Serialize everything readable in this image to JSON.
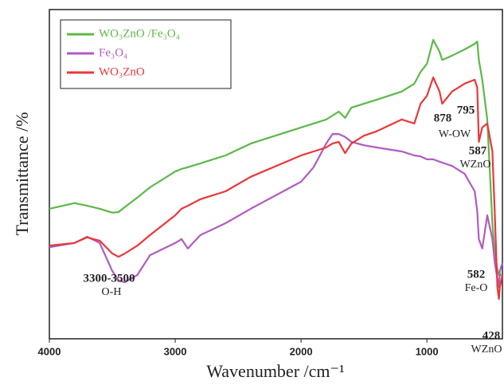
{
  "chart_data": {
    "type": "line",
    "x_label": "Wavenumber /cm⁻¹",
    "y_label": "Transmittance /%",
    "x": [
      4000,
      3800,
      3700,
      3600,
      3500,
      3450,
      3400,
      3300,
      3200,
      3000,
      2950,
      2900,
      2800,
      2600,
      2400,
      2000,
      1900,
      1800,
      1750,
      1700,
      1650,
      1600,
      1500,
      1400,
      1200,
      1100,
      1050,
      1000,
      950,
      900,
      878,
      800,
      700,
      620,
      600,
      587,
      560,
      520,
      480,
      460,
      440,
      428,
      420,
      400
    ],
    "xlim": [
      4000,
      400
    ],
    "xticks": [
      4000,
      3000,
      2000,
      1000
    ],
    "ylim": [
      0,
      100
    ],
    "series": [
      {
        "name": "WO₃ZnO /Fe₃O₄",
        "color": "#5cb848",
        "values": [
          39.5,
          41.2,
          40.4,
          39.5,
          38.3,
          38.5,
          40.0,
          42.9,
          46.0,
          50.8,
          51.6,
          52.1,
          53.3,
          55.7,
          59.3,
          64.2,
          65.4,
          66.6,
          67.8,
          69.0,
          67.1,
          70.2,
          71.4,
          72.6,
          75.1,
          77.5,
          81.1,
          83.5,
          90.8,
          87.2,
          84.7,
          86.0,
          87.9,
          89.6,
          90.3,
          84.7,
          78.7,
          66.6,
          35.1,
          25.4,
          21.1,
          19.4,
          19.4,
          19.4
        ]
      },
      {
        "name": "Fe₃O₄",
        "color": "#b05cc0",
        "values": [
          27.8,
          29.1,
          31.0,
          29.1,
          20.6,
          17.7,
          17.2,
          19.4,
          25.4,
          29.1,
          30.3,
          27.4,
          31.5,
          35.1,
          39.5,
          47.7,
          52.1,
          59.3,
          62.2,
          62.2,
          61.3,
          59.8,
          58.8,
          58.1,
          56.9,
          55.7,
          55.4,
          54.5,
          54.5,
          53.8,
          53.5,
          52.5,
          50.1,
          44.8,
          38.7,
          30.3,
          27.4,
          37.5,
          30.3,
          23.0,
          18.2,
          15.7,
          20.6,
          23.0
        ]
      },
      {
        "name": "WO₃ZnO",
        "color": "#e8383a",
        "values": [
          28.3,
          29.1,
          30.8,
          29.8,
          25.9,
          24.9,
          25.9,
          28.3,
          31.5,
          37.5,
          39.5,
          40.4,
          42.4,
          44.8,
          49.2,
          55.7,
          56.9,
          58.1,
          59.3,
          59.8,
          56.4,
          59.3,
          61.7,
          63.0,
          66.6,
          65.4,
          71.4,
          73.8,
          79.4,
          75.1,
          71.4,
          75.1,
          77.5,
          78.7,
          76.3,
          59.8,
          64.2,
          65.4,
          56.9,
          37.5,
          15.7,
          12.1,
          15.7,
          19.4
        ]
      }
    ],
    "annotations": [
      {
        "text": "3300-3500",
        "bold": true
      },
      {
        "text": "O-H",
        "bold": false
      },
      {
        "text": "878",
        "bold": true
      },
      {
        "text": "795",
        "bold": true
      },
      {
        "text": "W-OW",
        "bold": false
      },
      {
        "text": "587",
        "bold": true
      },
      {
        "text": "WZnO",
        "bold": false
      },
      {
        "text": "582",
        "bold": true
      },
      {
        "text": "Fe-O",
        "bold": false
      },
      {
        "text": "428",
        "bold": true
      },
      {
        "text": "WZnO",
        "bold": false
      }
    ]
  }
}
